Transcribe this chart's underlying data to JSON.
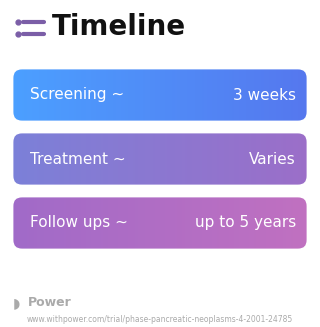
{
  "title": "Timeline",
  "rows": [
    {
      "label": "Screening ~",
      "value": "3 weeks",
      "color_left": "#4B9FFF",
      "color_right": "#5577EE"
    },
    {
      "label": "Treatment ~",
      "value": "Varies",
      "color_left": "#7B80D8",
      "color_right": "#9B6EC8"
    },
    {
      "label": "Follow ups ~",
      "value": "up to 5 years",
      "color_left": "#A06AC8",
      "color_right": "#C070C0"
    }
  ],
  "bg_color": "#FFFFFF",
  "title_color": "#111111",
  "icon_color": "#7B5EA7",
  "text_color": "#FFFFFF",
  "footer_logo_text": "Power",
  "footer_logo_color": "#AAAAAA",
  "footer_url": "www.withpower.com/trial/phase-pancreatic-neoplasms-4-2001-24785",
  "footer_url_color": "#AAAAAA",
  "font_size_title": 20,
  "font_size_row": 11,
  "font_size_footer_logo": 9,
  "font_size_footer_url": 5.5
}
